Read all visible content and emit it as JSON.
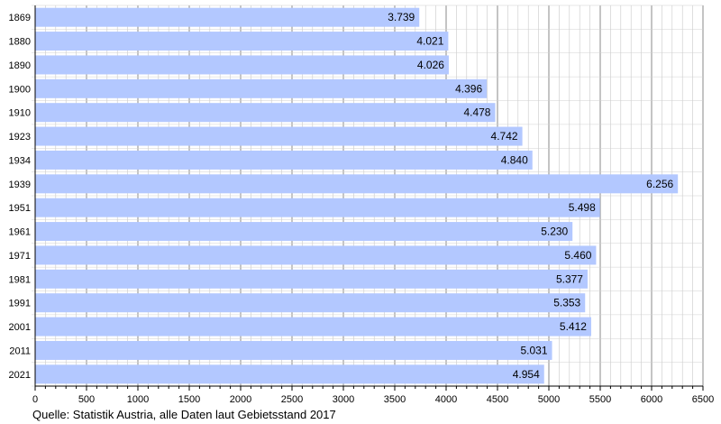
{
  "chart_data": {
    "type": "bar",
    "orientation": "horizontal",
    "categories": [
      "1869",
      "1880",
      "1890",
      "1900",
      "1910",
      "1923",
      "1934",
      "1939",
      "1951",
      "1961",
      "1971",
      "1981",
      "1991",
      "2001",
      "2011",
      "2021"
    ],
    "values": [
      3739,
      4021,
      4026,
      4396,
      4478,
      4742,
      4840,
      6256,
      5498,
      5230,
      5460,
      5377,
      5353,
      5412,
      5031,
      4954
    ],
    "value_labels": [
      "3.739",
      "4.021",
      "4.026",
      "4.396",
      "4.478",
      "4.742",
      "4.840",
      "6.256",
      "5.498",
      "5.230",
      "5.460",
      "5.377",
      "5.353",
      "5.412",
      "5.031",
      "4.954"
    ],
    "x_ticks": [
      "0",
      "500",
      "1000",
      "1500",
      "2000",
      "2500",
      "3000",
      "3500",
      "4000",
      "4500",
      "5000",
      "5500",
      "6000",
      "6500"
    ],
    "xlim": [
      0,
      6500
    ],
    "minor_tick_step": 100,
    "grid": "vertical",
    "bar_color": "#b3c8ff",
    "title": "",
    "xlabel": "",
    "ylabel": ""
  },
  "source": "Quelle: Statistik Austria, alle Daten laut Gebietsstand 2017"
}
